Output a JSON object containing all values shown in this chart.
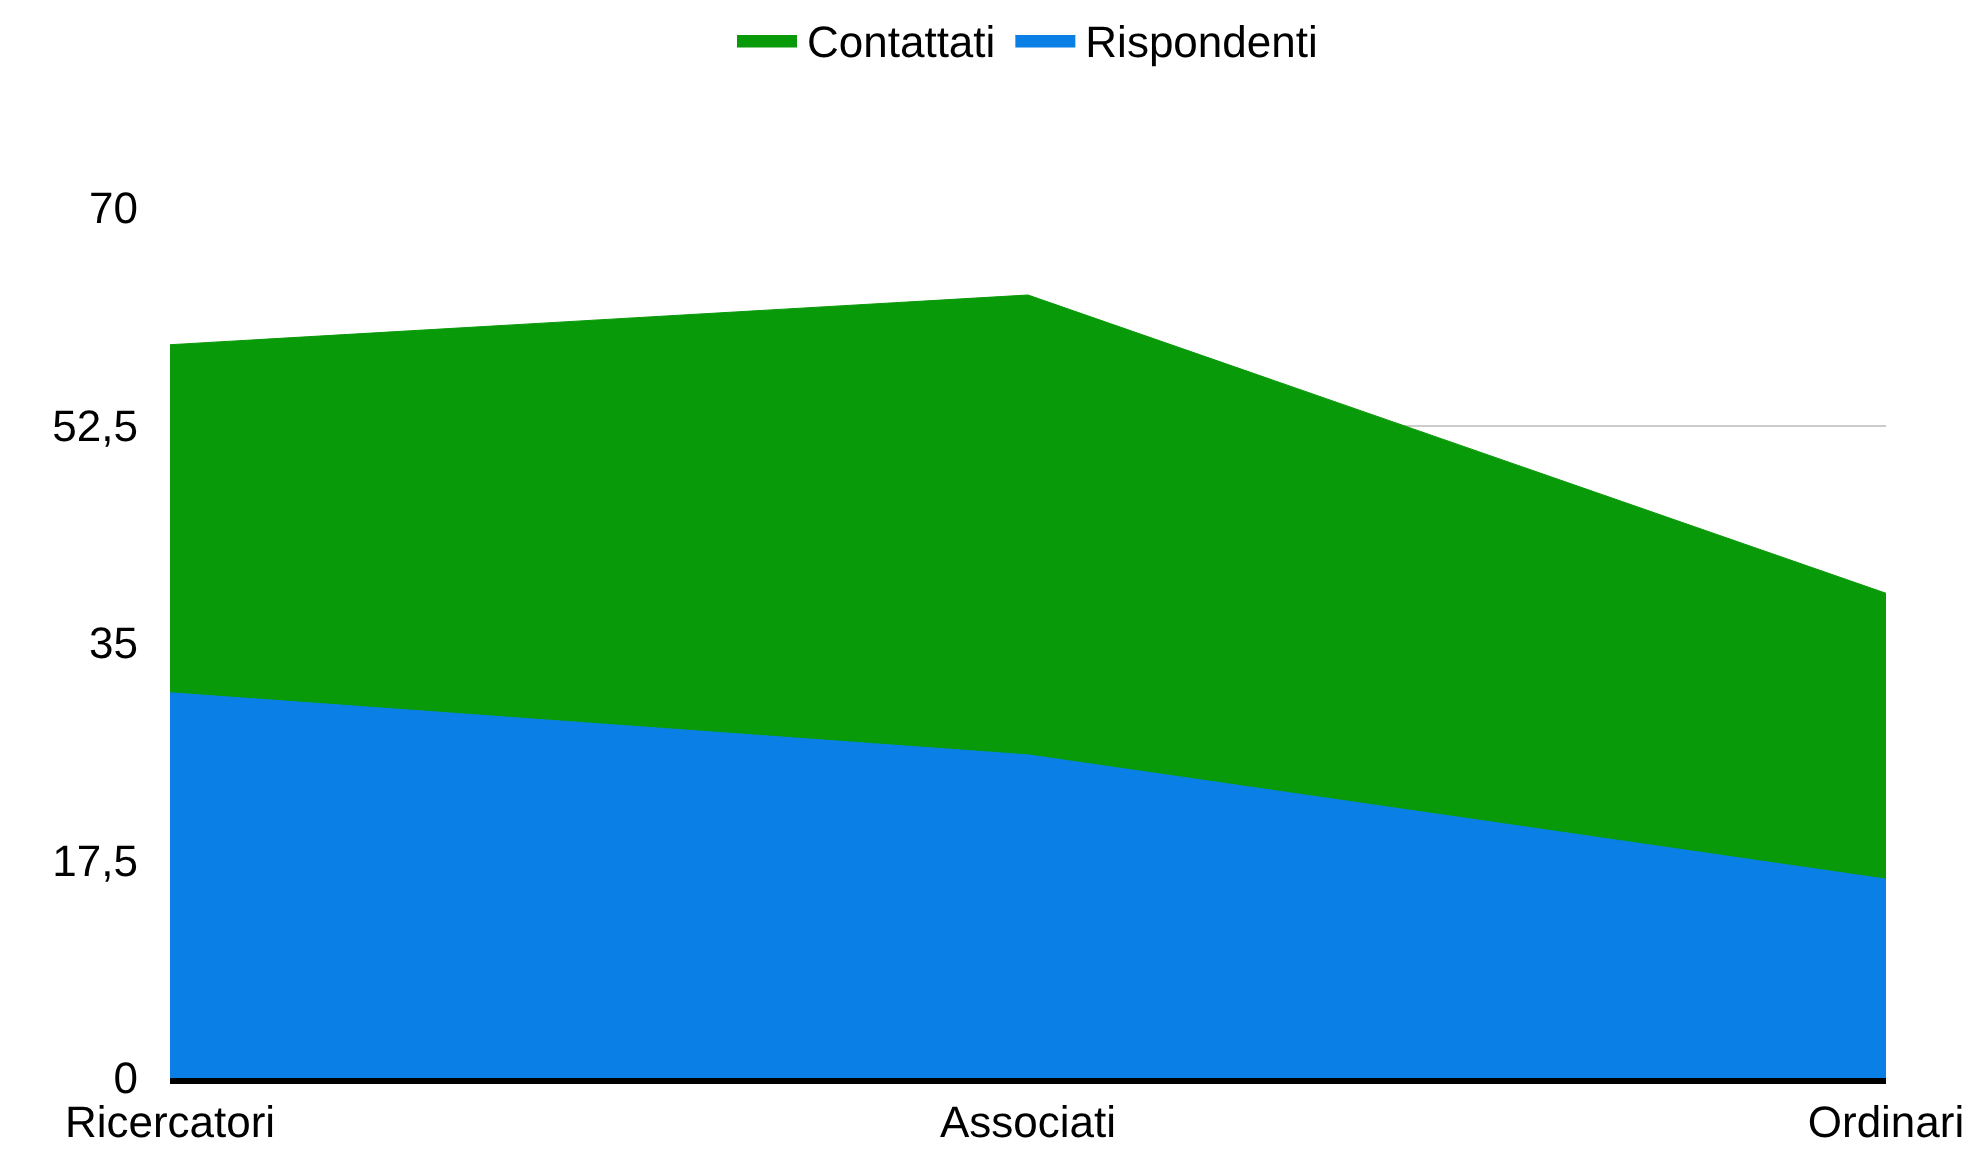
{
  "chart_data": {
    "type": "area",
    "categories": [
      "Ricercatori",
      "Associati",
      "Ordinari"
    ],
    "series": [
      {
        "name": "Contattati",
        "color": "#089a08",
        "values": [
          59,
          63,
          39
        ]
      },
      {
        "name": "Rispondenti",
        "color": "#0a80e6",
        "values": [
          31,
          26,
          16
        ]
      }
    ],
    "ylim": [
      0,
      70
    ],
    "yticks": [
      0,
      {
        "value": 17.5,
        "label": "17,5"
      },
      35,
      {
        "value": 52.5,
        "label": "52,5"
      },
      70
    ],
    "grid": "y",
    "legend": "top"
  }
}
